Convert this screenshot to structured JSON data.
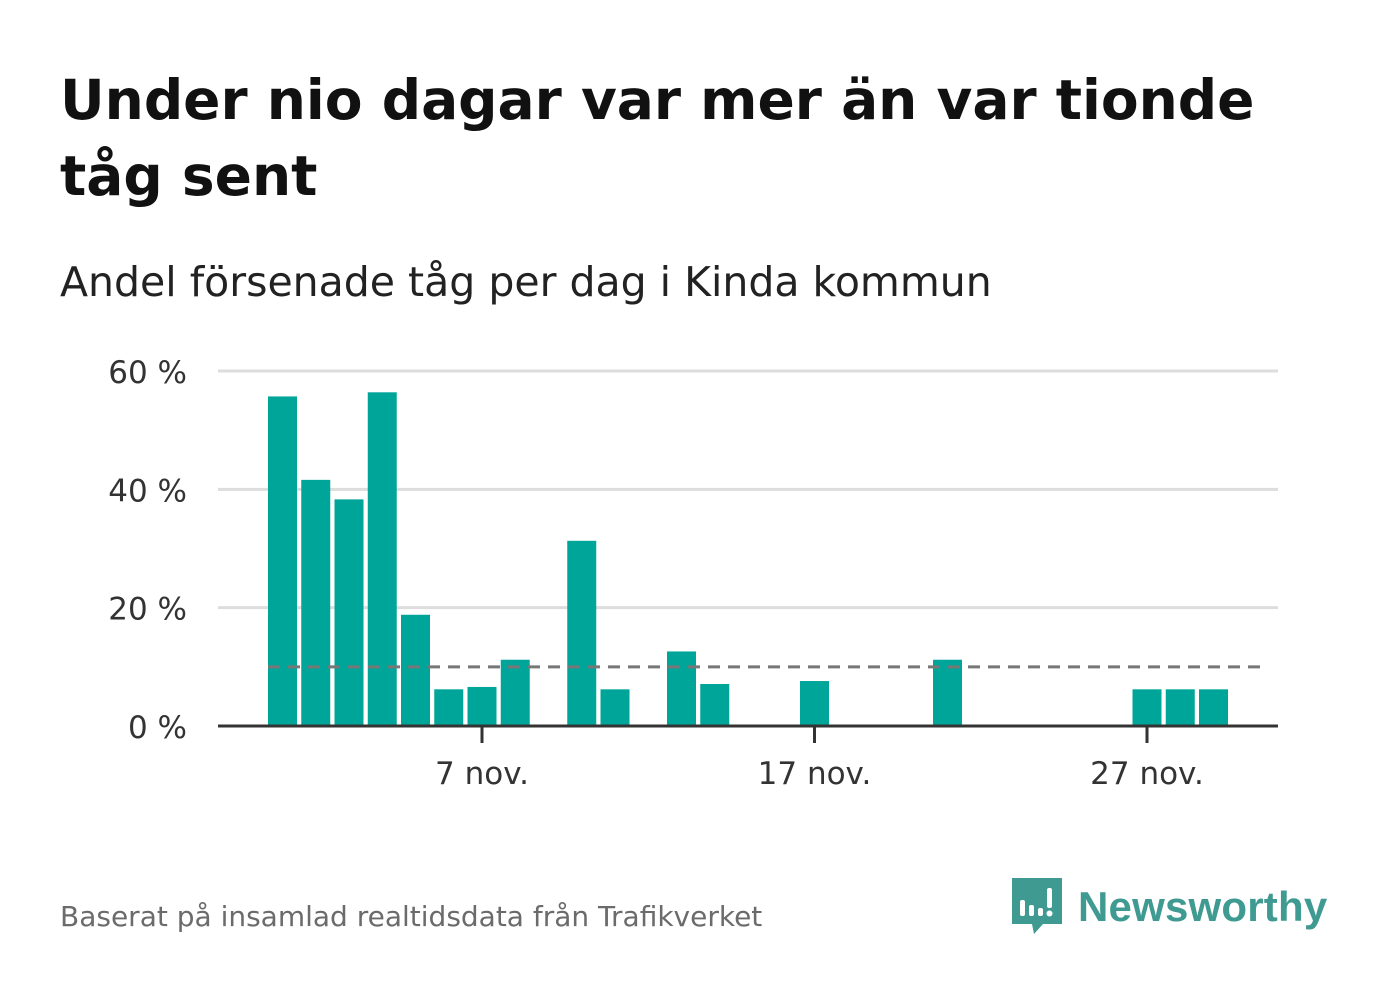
{
  "header": {
    "title": "Under nio dagar var mer än var tionde tåg sent",
    "subtitle": "Andel försenade tåg per dag i Kinda kommun"
  },
  "footer": {
    "source": "Baserat på insamlad realtidsdata från Trafikverket",
    "brand": "Newsworthy",
    "brand_color": "#3f9a91"
  },
  "chart_data": {
    "type": "bar",
    "x": [
      "1 nov.",
      "2 nov.",
      "3 nov.",
      "4 nov.",
      "5 nov.",
      "6 nov.",
      "7 nov.",
      "8 nov.",
      "9 nov.",
      "10 nov.",
      "11 nov.",
      "12 nov.",
      "13 nov.",
      "14 nov.",
      "15 nov.",
      "16 nov.",
      "17 nov.",
      "18 nov.",
      "19 nov.",
      "20 nov.",
      "21 nov.",
      "22 nov.",
      "23 nov.",
      "24 nov.",
      "25 nov.",
      "26 nov.",
      "27 nov.",
      "28 nov.",
      "29 nov.",
      "30 nov."
    ],
    "values": [
      55.7,
      41.6,
      38.3,
      56.4,
      18.8,
      6.2,
      6.6,
      11.2,
      0,
      31.3,
      6.2,
      0,
      12.6,
      7.1,
      0,
      0,
      7.6,
      0,
      0,
      0,
      11.2,
      0,
      0,
      0,
      0,
      0,
      6.2,
      6.2,
      6.2,
      0
    ],
    "reference_line": {
      "value": 10,
      "style": "dashed"
    },
    "x_ticks": [
      {
        "label": "7 nov.",
        "x": "7 nov."
      },
      {
        "label": "17 nov.",
        "x": "17 nov."
      },
      {
        "label": "27 nov.",
        "x": "27 nov."
      }
    ],
    "y_ticks": [
      {
        "label": "0 %",
        "value": 0
      },
      {
        "label": "20 %",
        "value": 20
      },
      {
        "label": "40 %",
        "value": 40
      },
      {
        "label": "60 %",
        "value": 60
      }
    ],
    "ylim": [
      0,
      60
    ],
    "grid": true,
    "colors": {
      "bar": "#00a59a",
      "grid": "#dddddd",
      "axis": "#333333",
      "reference": "#777777"
    }
  }
}
